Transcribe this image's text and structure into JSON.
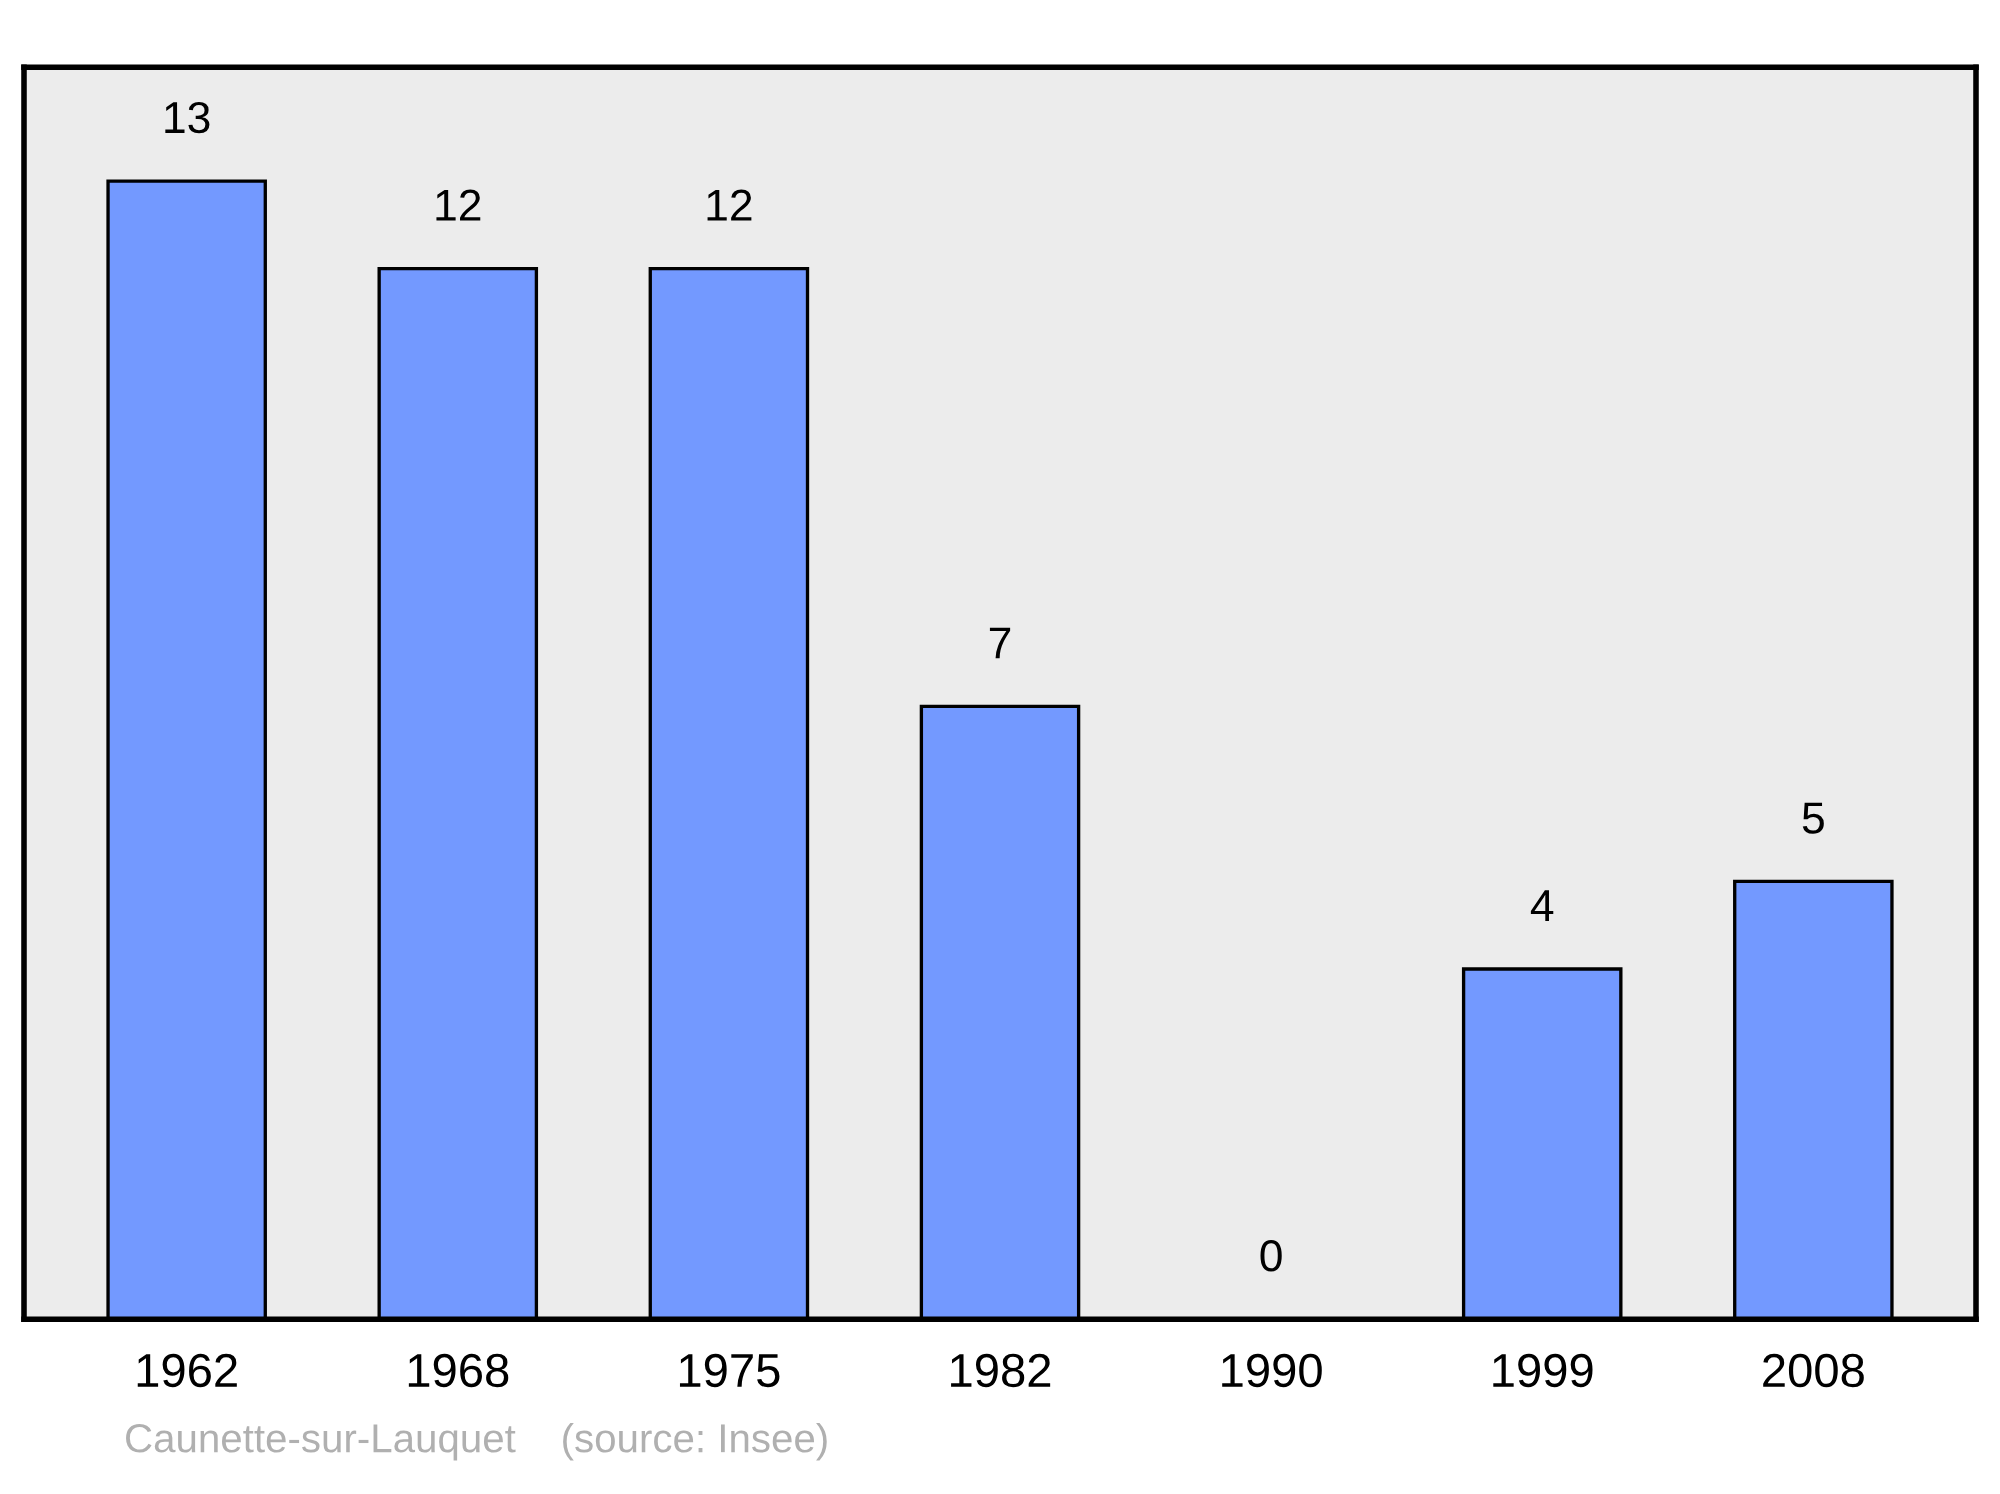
{
  "chart_data": {
    "type": "bar",
    "categories": [
      "1962",
      "1968",
      "1975",
      "1982",
      "1990",
      "1999",
      "2008"
    ],
    "values": [
      13,
      12,
      12,
      7,
      0,
      4,
      5
    ],
    "color": "#7399ff",
    "data_labels": true,
    "grid": false,
    "annotations": [
      "Caunette-sur-Lauquet    (source: Insee)"
    ]
  }
}
